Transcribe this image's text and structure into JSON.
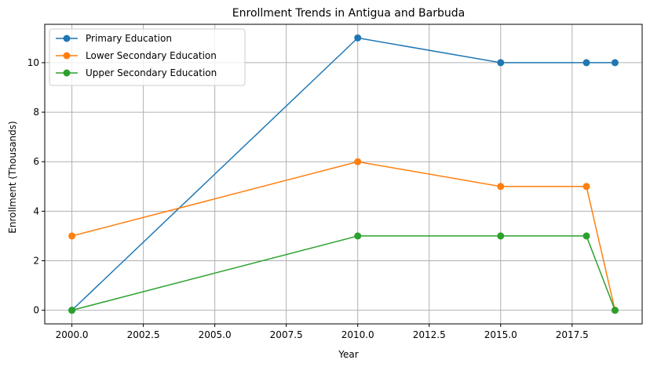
{
  "chart_data": {
    "type": "line",
    "title": "Enrollment Trends in Antigua and Barbuda",
    "xlabel": "Year",
    "ylabel": "Enrollment (Thousands)",
    "x": [
      2000,
      2010,
      2015,
      2018,
      2019
    ],
    "xlim": [
      1999.05,
      2019.95
    ],
    "ylim": [
      -0.55,
      11.55
    ],
    "xticks": [
      2000,
      2002.5,
      2005,
      2007.5,
      2010,
      2012.5,
      2015,
      2017.5
    ],
    "xtick_labels": [
      "2000.0",
      "2002.5",
      "2005.0",
      "2007.5",
      "2010.0",
      "2012.5",
      "2015.0",
      "2017.5"
    ],
    "yticks": [
      0,
      2,
      4,
      6,
      8,
      10
    ],
    "ytick_labels": [
      "0",
      "2",
      "4",
      "6",
      "8",
      "10"
    ],
    "grid": true,
    "legend_position": "top-left",
    "series": [
      {
        "name": "Primary Education",
        "color": "#1f77b4",
        "values": [
          0,
          11,
          10,
          10,
          10
        ]
      },
      {
        "name": "Lower Secondary Education",
        "color": "#ff7f0e",
        "values": [
          3,
          6,
          5,
          5,
          0
        ]
      },
      {
        "name": "Upper Secondary Education",
        "color": "#2ca02c",
        "values": [
          0,
          3,
          3,
          3,
          0
        ]
      }
    ]
  }
}
